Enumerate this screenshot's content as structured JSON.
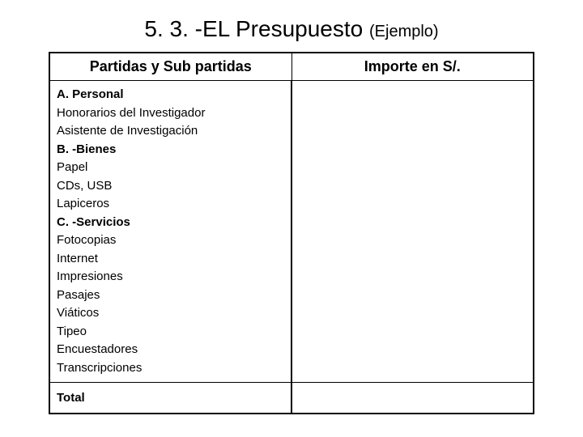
{
  "title": {
    "main": "5. 3. -EL Presupuesto ",
    "sub": "(Ejemplo)",
    "main_fontsize": 28,
    "sub_fontsize": 20,
    "color": "#000000"
  },
  "table": {
    "type": "table",
    "border_color": "#000000",
    "background_color": "#ffffff",
    "columns": [
      {
        "label": "Partidas y Sub partidas",
        "width": "50%",
        "align": "center"
      },
      {
        "label": "Importe en S/.",
        "width": "50%",
        "align": "center"
      }
    ],
    "header_fontsize": 18,
    "body_fontsize": 15,
    "items": [
      {
        "text": "A. Personal",
        "bold": true
      },
      {
        "text": "Honorarios del Investigador",
        "bold": false
      },
      {
        "text": "Asistente de Investigación",
        "bold": false
      },
      {
        "text": "B. -Bienes",
        "bold": true
      },
      {
        "text": "Papel",
        "bold": false
      },
      {
        "text": "CDs, USB",
        "bold": false
      },
      {
        "text": "Lapiceros",
        "bold": false
      },
      {
        "text": "C. -Servicios",
        "bold": true
      },
      {
        "text": "Fotocopias",
        "bold": false
      },
      {
        "text": "Internet",
        "bold": false
      },
      {
        "text": "Impresiones",
        "bold": false
      },
      {
        "text": "Pasajes",
        "bold": false
      },
      {
        "text": "Viáticos",
        "bold": false
      },
      {
        "text": "Tipeo",
        "bold": false
      },
      {
        "text": "Encuestadores",
        "bold": false
      },
      {
        "text": "Transcripciones",
        "bold": false
      }
    ],
    "total_label": "Total"
  }
}
